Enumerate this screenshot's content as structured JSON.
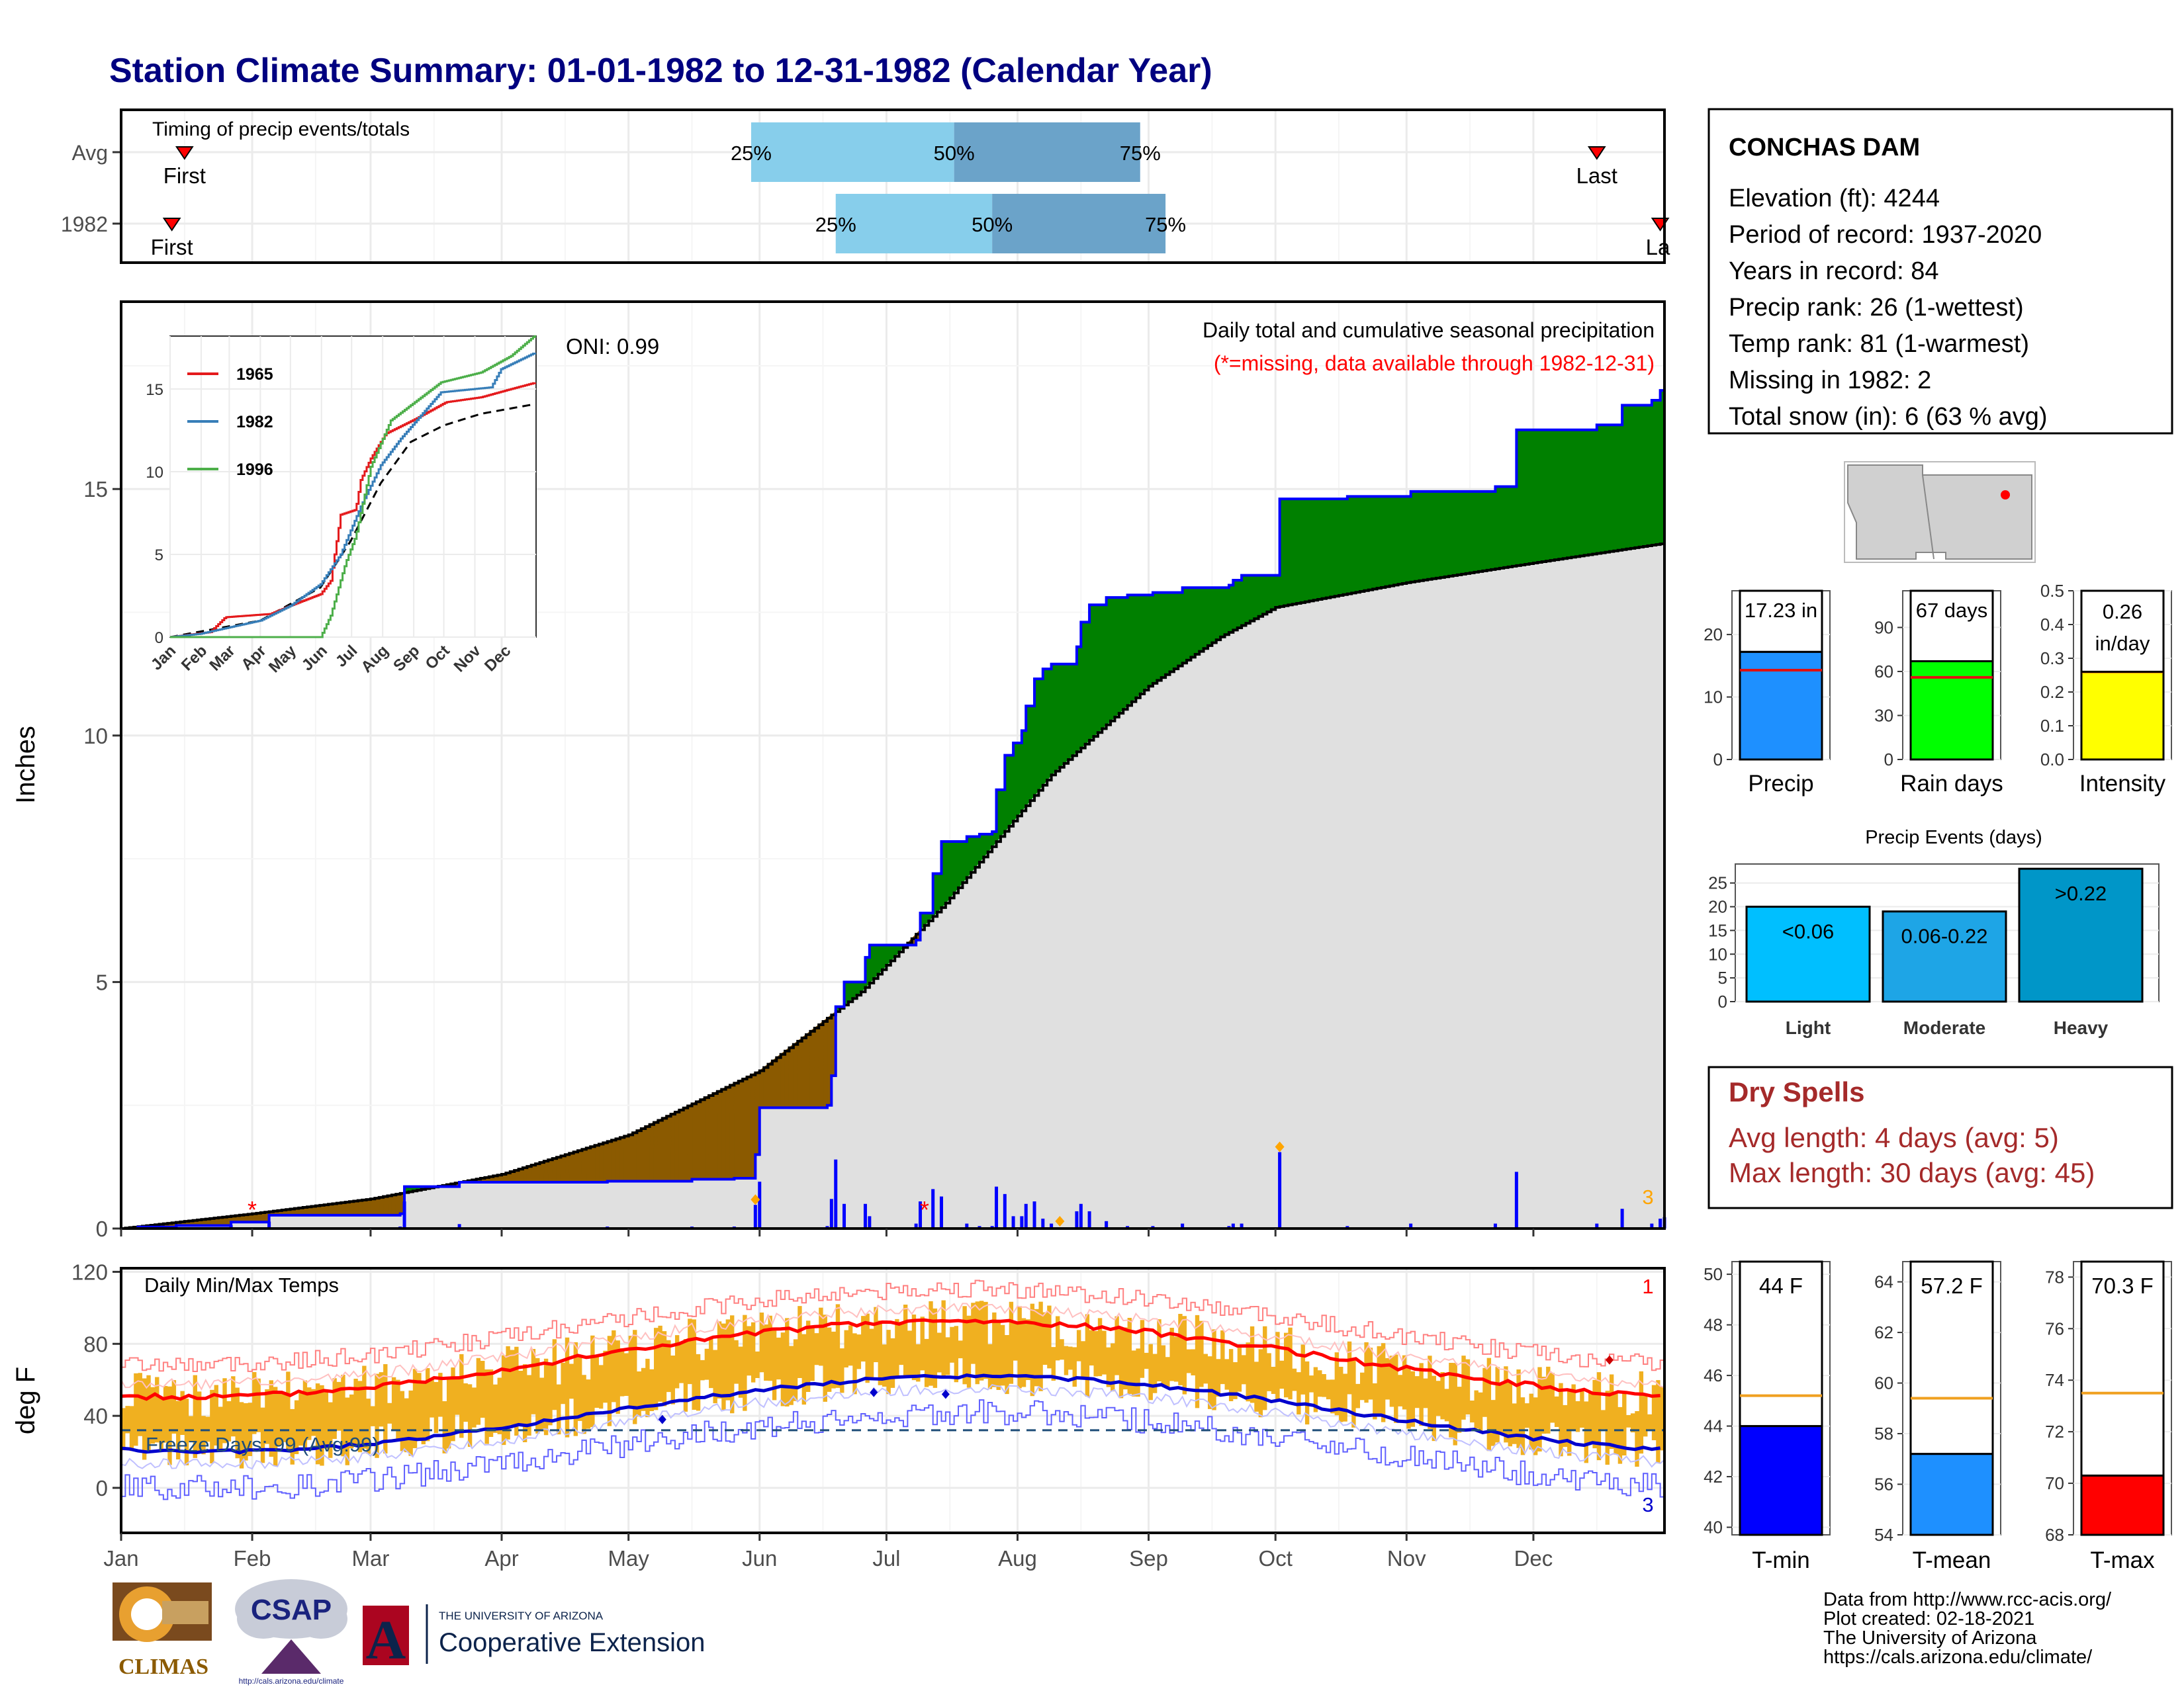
{
  "title": "Station Climate Summary: 01-01-1982 to 12-31-1982 (Calendar Year)",
  "months": [
    "Jan",
    "Feb",
    "Mar",
    "Apr",
    "May",
    "Jun",
    "Jul",
    "Aug",
    "Sep",
    "Oct",
    "Nov",
    "Dec"
  ],
  "timing": {
    "title": "Timing of precip events/totals",
    "rows": [
      {
        "label": "Avg",
        "first_label": "First",
        "last_label": "Last",
        "first_day": 15,
        "last_day": 349,
        "q25_label": "25%",
        "q50_label": "50%",
        "q75_label": "75%",
        "q25_day": 149,
        "q50_day": 197,
        "q75_day": 241
      },
      {
        "label": "1982",
        "first_label": "First",
        "last_label": "La",
        "first_day": 12,
        "last_day": 364,
        "q25_label": "25%",
        "q50_label": "50%",
        "q75_label": "75%",
        "q25_day": 169,
        "q50_day": 206,
        "q75_day": 247
      }
    ],
    "colors": {
      "q25_50": "#87ceeb",
      "q50_75": "#6ba3c9",
      "marker": "#ff0000"
    }
  },
  "station": {
    "name": "CONCHAS DAM",
    "lines": [
      "Elevation (ft): 4244",
      "Period of record: 1937-2020",
      "Years in record: 84",
      "Precip rank: 26 (1-wettest)",
      "Temp rank: 81 (1-warmest)",
      "Missing in 1982: 2",
      "Total snow (in): 6 (63 % avg)"
    ]
  },
  "precip_panel": {
    "ylabel": "Inches",
    "yticks": [
      0,
      5,
      10,
      15
    ],
    "ylim": [
      0,
      18.8
    ],
    "oni": "ONI: 0.99",
    "subtitle": "Daily total and cumulative seasonal precipitation",
    "missing_note": "(*=missing, data available through 1982-12-31)",
    "count_label": "3",
    "colors": {
      "above": "#008000",
      "below": "#8b5a00",
      "avg_fill": "#e0e0e0",
      "obs_line": "#0000ff",
      "bars": "#0000ff",
      "missing": "#ff0000",
      "flag": "#ffa500"
    }
  },
  "inset": {
    "yticks": [
      0,
      5,
      10,
      15
    ],
    "months": [
      "Jan",
      "Feb",
      "Mar",
      "Apr",
      "May",
      "Jun",
      "Jul",
      "Aug",
      "Sep",
      "Oct",
      "Nov",
      "Dec"
    ],
    "legend": [
      {
        "name": "1965",
        "color": "#e41a1c"
      },
      {
        "name": "1982",
        "color": "#377eb8"
      },
      {
        "name": "1996",
        "color": "#4daf4a"
      }
    ]
  },
  "temp_panel": {
    "ylabel": "deg F",
    "title": "Daily Min/Max Temps",
    "yticks": [
      0,
      40,
      80,
      120
    ],
    "ylim": [
      -25,
      122
    ],
    "freeze_label": "Freeze Days: 99 (Avg:99)",
    "freeze_level": 32,
    "count_top": "1",
    "count_bottom": "3",
    "colors": {
      "bars": "#f0b020",
      "avg_max": "#ff0000",
      "avg_min": "#0000cd",
      "rec_max": "#ff8080",
      "rec_min": "#6060ff"
    }
  },
  "summary_bars": [
    {
      "label": "Precip",
      "value_label": "17.23 in",
      "value": 17.23,
      "avg": 14.3,
      "ylim": [
        0,
        27
      ],
      "yticks": [
        0,
        10,
        20
      ],
      "color": "#1e90ff",
      "two_line": false
    },
    {
      "label": "Rain days",
      "value_label": "67 days",
      "value": 67,
      "avg": 56,
      "ylim": [
        0,
        115
      ],
      "yticks": [
        0,
        30,
        60,
        90
      ],
      "color": "#00ff00",
      "two_line": false
    },
    {
      "label": "Intensity",
      "value_label": "0.26 in/day",
      "value": 0.26,
      "avg": 0.26,
      "ylim": [
        0,
        0.5
      ],
      "yticks": [
        0.0,
        0.1,
        0.2,
        0.3,
        0.4,
        0.5
      ],
      "color": "#ffff00",
      "two_line": true,
      "line1": "0.26",
      "line2": "in/day"
    }
  ],
  "events": {
    "title": "Precip Events (days)",
    "yticks": [
      0,
      5,
      10,
      15,
      20,
      25
    ],
    "ylim": [
      0,
      29
    ],
    "bars": [
      {
        "category": "Light",
        "label": "<0.06",
        "value": 20,
        "color": "#00bfff"
      },
      {
        "category": "Moderate",
        "label": "0.06-0.22",
        "value": 19,
        "color": "#1ea5e6"
      },
      {
        "category": "Heavy",
        "label": ">0.22",
        "value": 28,
        "color": "#0096c8"
      }
    ]
  },
  "dry_spells": {
    "title": "Dry Spells",
    "line1": "Avg length: 4 days (avg: 5)",
    "line2": "Max length: 30 days (avg: 45)"
  },
  "temp_bars": [
    {
      "label": "T-min",
      "value_label": "44 F",
      "value": 44.0,
      "avg": 45.2,
      "ylim": [
        39.7,
        50.5
      ],
      "yticks": [
        40,
        42,
        44,
        46,
        48,
        50
      ],
      "color": "#0000ff"
    },
    {
      "label": "T-mean",
      "value_label": "57.2 F",
      "value": 57.2,
      "avg": 59.4,
      "ylim": [
        54,
        64.8
      ],
      "yticks": [
        54,
        56,
        58,
        60,
        62,
        64
      ],
      "color": "#1e90ff"
    },
    {
      "label": "T-max",
      "value_label": "70.3 F",
      "value": 70.3,
      "avg": 73.5,
      "ylim": [
        68,
        78.6
      ],
      "yticks": [
        68,
        70,
        72,
        74,
        76,
        78
      ],
      "color": "#ff0000"
    }
  ],
  "credits": [
    "Data from http://www.rcc-acis.org/",
    "Plot created: 02-18-2021",
    "The University of Arizona",
    "https://cals.arizona.edu/climate/"
  ],
  "logos": {
    "climas": "CLIMAS",
    "csap": "CSAP",
    "csap_url": "http://cals.arizona.edu/climate",
    "ua_letter": "A",
    "ua_small": "THE UNIVERSITY OF ARIZONA",
    "ua_big": "Cooperative Extension"
  }
}
